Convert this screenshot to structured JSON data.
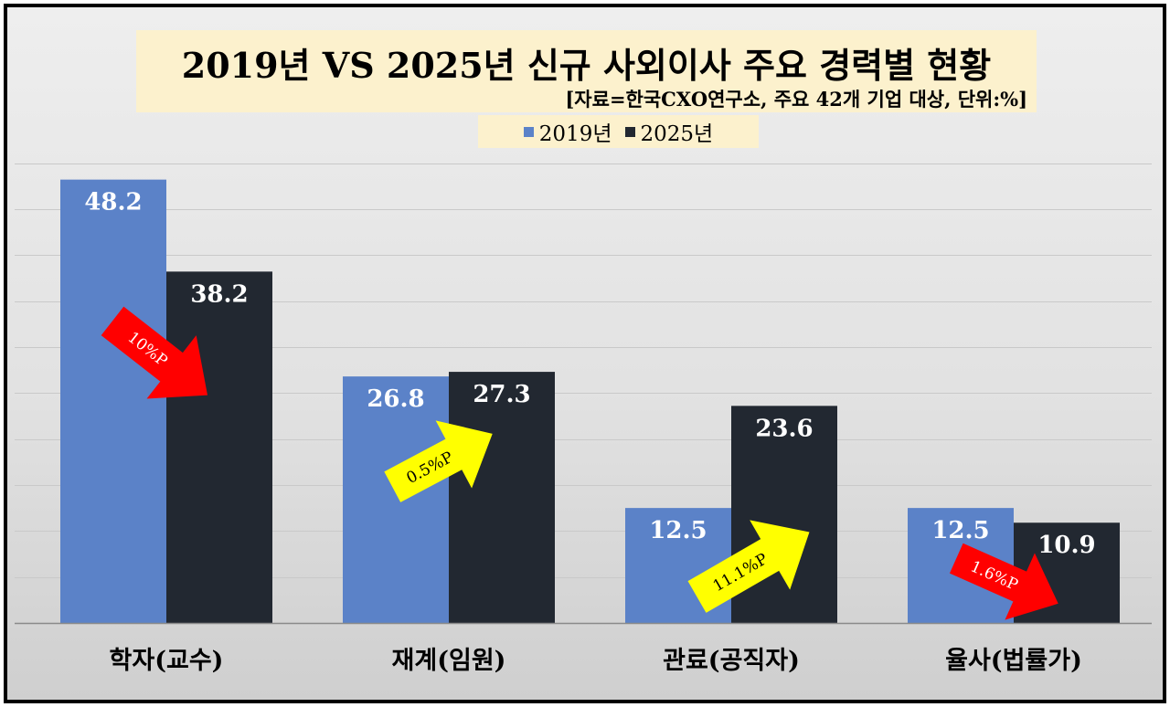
{
  "title": "2019년 VS 2025년 신규 사외이사 주요 경력별 현황",
  "subtitle": "[자료=한국CXO연구소, 주요 42개 기업 대상, 단위:%]",
  "colors": {
    "series_2019": "#5b82c8",
    "series_2025": "#222831",
    "arrow_down": "#ff0000",
    "arrow_up": "#ffff00"
  },
  "chart_data": {
    "type": "bar",
    "title": "2019년 VS 2025년 신규 사외이사 주요 경력별 현황",
    "categories": [
      "학자(교수)",
      "재계(임원)",
      "관료(공직자)",
      "율사(법률가)"
    ],
    "series": [
      {
        "name": "2019년",
        "values": [
          48.2,
          26.8,
          12.5,
          12.5
        ]
      },
      {
        "name": "2025년",
        "values": [
          38.2,
          27.3,
          23.6,
          10.9
        ]
      }
    ],
    "value_labels": {
      "2019년": [
        "48.2",
        "26.8",
        "12.5",
        "12.5"
      ],
      "2025년": [
        "38.2",
        "27.3",
        "23.6",
        "10.9"
      ]
    },
    "ylim": [
      0,
      50
    ],
    "grid": true,
    "legend": "top-center",
    "annotations": [
      {
        "category": "학자(교수)",
        "text": "10%P",
        "direction": "down"
      },
      {
        "category": "재계(임원)",
        "text": "0.5%P",
        "direction": "up"
      },
      {
        "category": "관료(공직자)",
        "text": "11.1%P",
        "direction": "up"
      },
      {
        "category": "율사(법률가)",
        "text": "1.6%P",
        "direction": "down"
      }
    ]
  }
}
